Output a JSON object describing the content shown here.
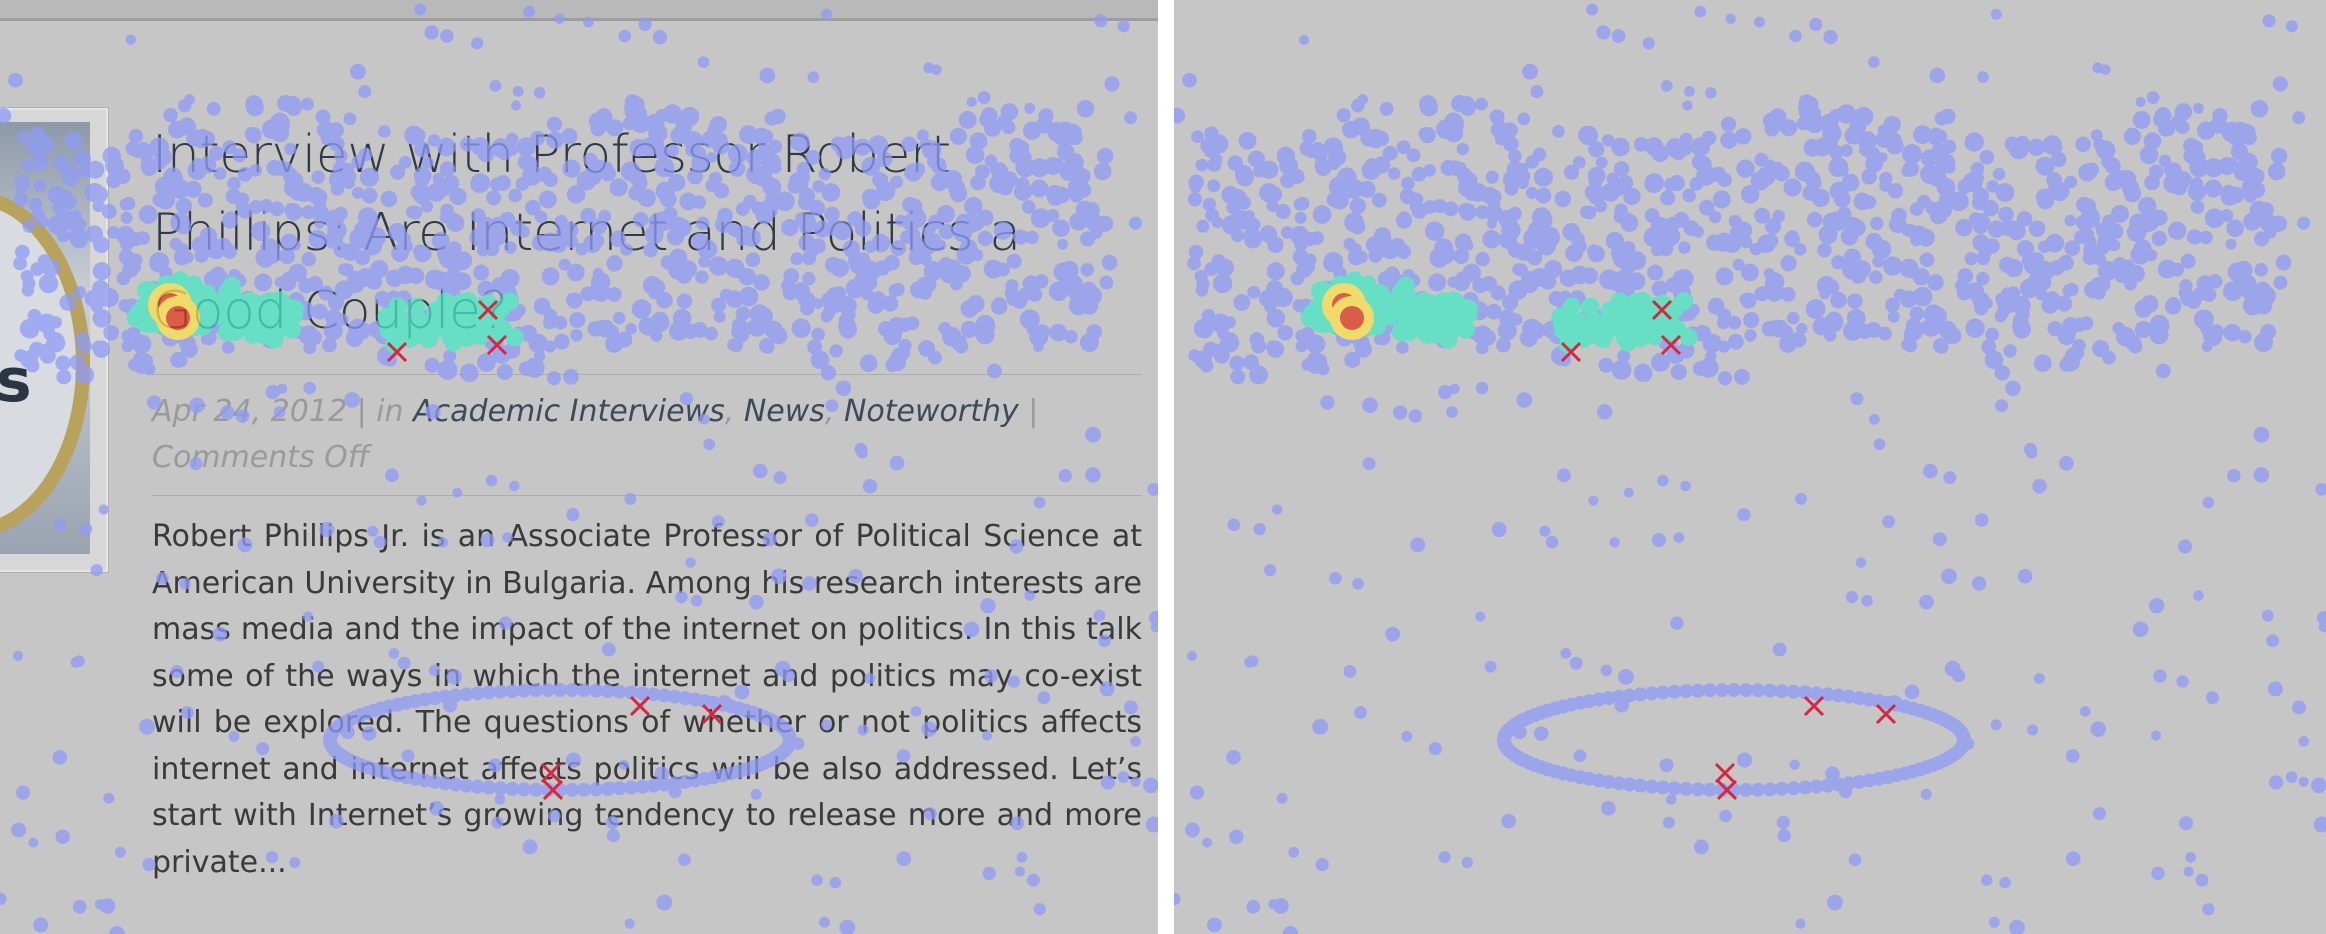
{
  "thumbnail": {
    "text_fragment": "ks"
  },
  "post": {
    "title": "Interview with Professor Robert Phillips: Are Internet and Politics a Good Couple?",
    "date": "Apr 24, 2012",
    "in_label": "| in",
    "categories": [
      "Academic Interviews",
      "News",
      "Noteworthy"
    ],
    "category_sep": ", ",
    "meta_sep": " |",
    "comments": "Comments Off",
    "excerpt": "Robert Phillips Jr. is an Associate Professor of Political Science at American University in Bulgaria. Among his research interests are mass media and the impact of the internet on politics. In this talk some of the ways in which the internet and politics may co-exist will be explored. The questions of whether or not politics affects internet and internet affects politics will be also addressed.  Let’s start with Internet’s growing tendency to release more and more private..."
  },
  "heatmap": {
    "colors": {
      "low": "#8f9bf6",
      "mid": "#46e8c4",
      "high": "#ffe14a",
      "peak": "#e03a1e"
    },
    "cross_marker_color": "#d9263f"
  }
}
